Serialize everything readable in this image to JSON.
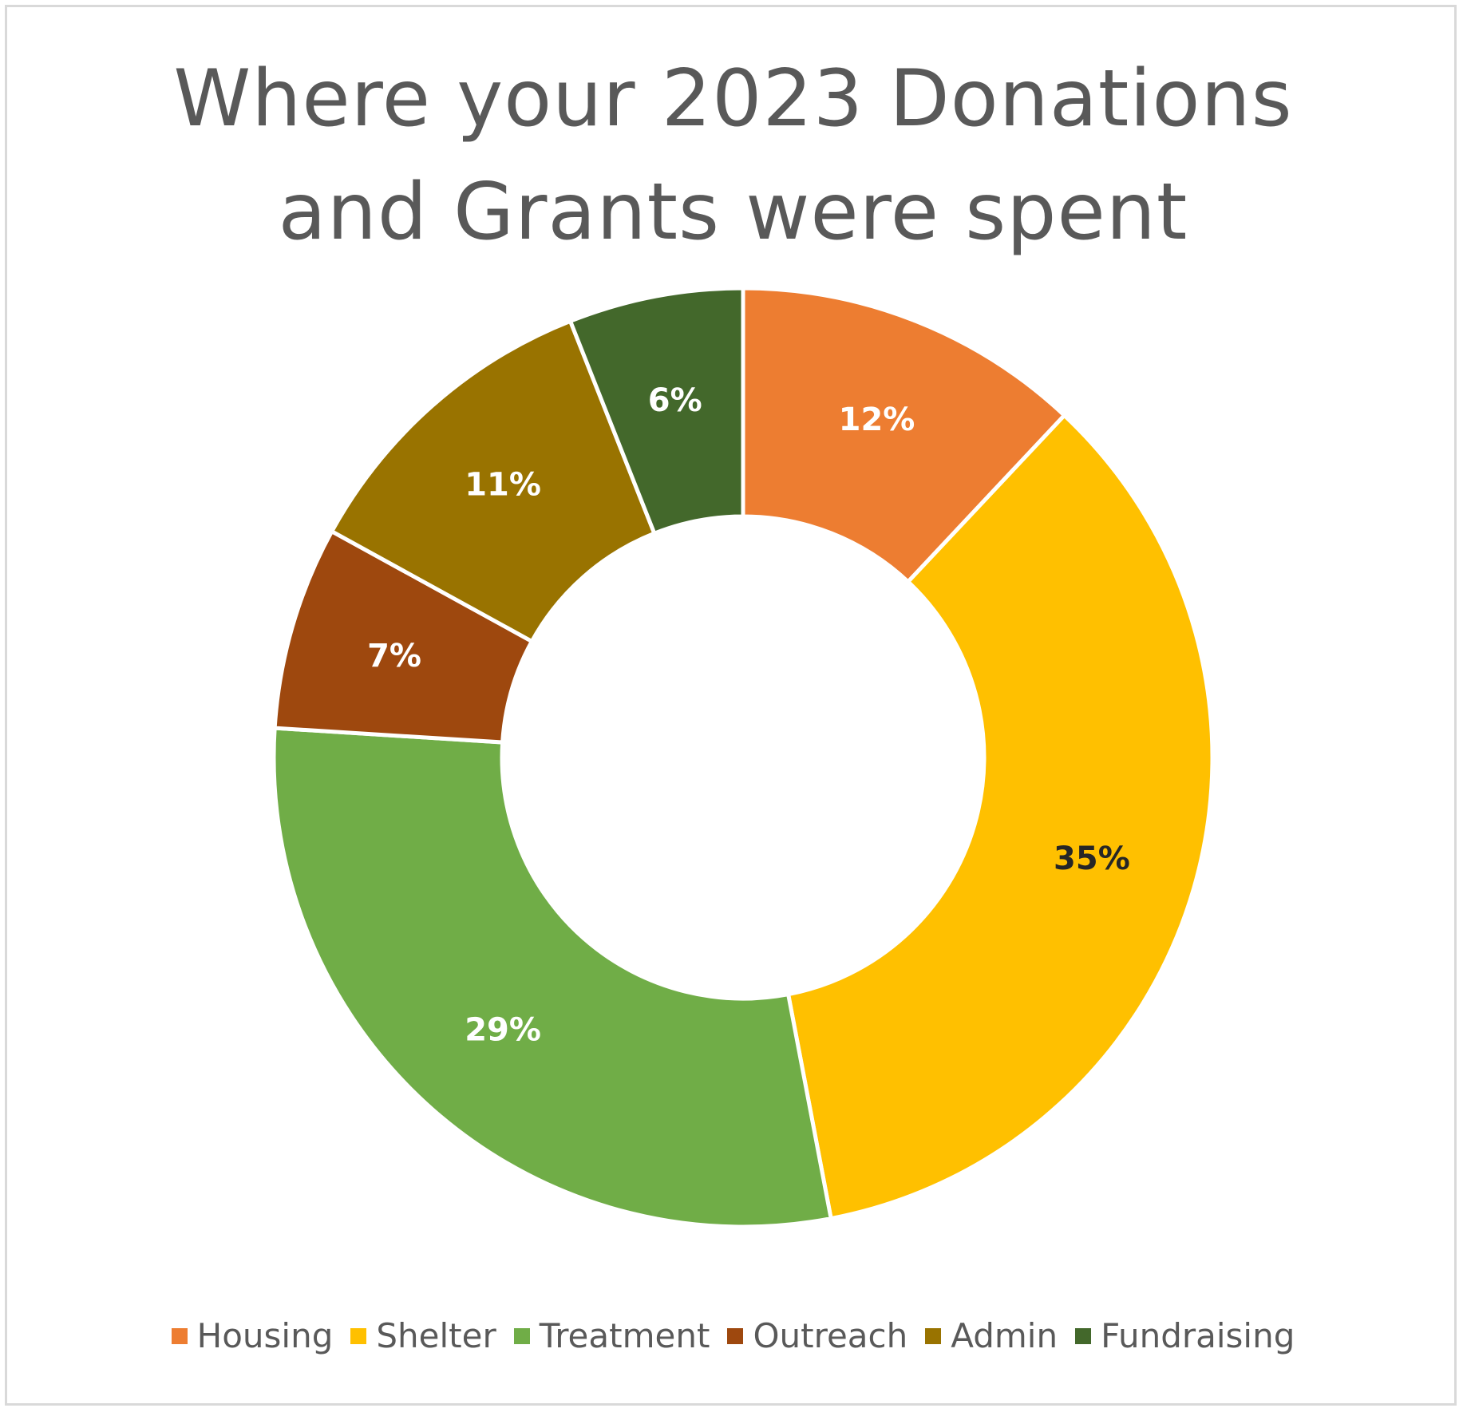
{
  "chart_data": {
    "type": "pie",
    "variant": "donut",
    "title_lines": [
      "Where your 2023 Donations",
      "and Grants were spent"
    ],
    "categories": [
      "Housing",
      "Shelter",
      "Treatment",
      "Outreach",
      "Admin",
      "Fundraising"
    ],
    "values": [
      12,
      35,
      29,
      7,
      11,
      6
    ],
    "data_labels": [
      "12%",
      "35%",
      "29%",
      "7%",
      "11%",
      "6%"
    ],
    "unit": "%",
    "colors": [
      "#ED7D31",
      "#FFC000",
      "#70AD47",
      "#9E480E",
      "#997300",
      "#43682B"
    ],
    "label_colors": [
      "#ffffff",
      "#262626",
      "#ffffff",
      "#ffffff",
      "#ffffff",
      "#ffffff"
    ],
    "legend": {
      "position": "bottom"
    }
  }
}
